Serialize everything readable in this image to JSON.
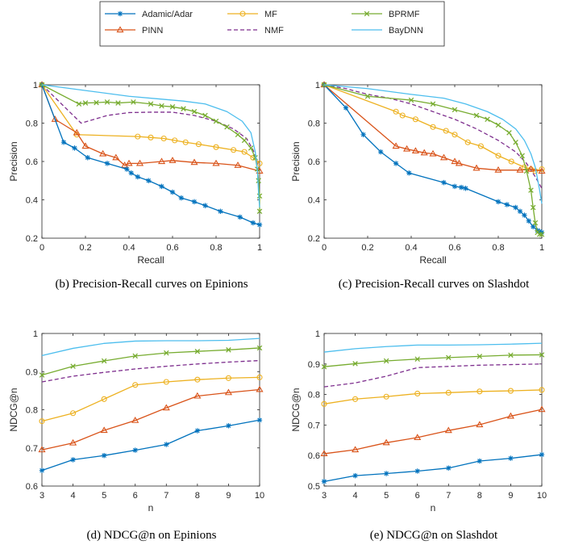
{
  "legend": {
    "entries": [
      {
        "name": "Adamic/Adar",
        "color": "#0072BD",
        "marker": "asterisk",
        "dash": "none"
      },
      {
        "name": "MF",
        "color": "#EDB120",
        "marker": "circle",
        "dash": "none"
      },
      {
        "name": "BPRMF",
        "color": "#77AC30",
        "marker": "cross",
        "dash": "none"
      },
      {
        "name": "PINN",
        "color": "#D95319",
        "marker": "triangle",
        "dash": "none"
      },
      {
        "name": "NMF",
        "color": "#7E2F8E",
        "marker": "none",
        "dash": "dashed"
      },
      {
        "name": "BayDNN",
        "color": "#4DBEEE",
        "marker": "none",
        "dash": "none"
      }
    ]
  },
  "chart_data": [
    {
      "id": "b",
      "type": "line",
      "caption": "(b)  Precision-Recall curves on Epinions",
      "xlabel": "Recall",
      "ylabel": "Precision",
      "xlim": [
        0,
        1
      ],
      "ylim": [
        0.2,
        1
      ],
      "xticks": [
        "0",
        "0.2",
        "0.4",
        "0.6",
        "0.8",
        "1"
      ],
      "yticks": [
        "0.2",
        "0.4",
        "0.6",
        "0.8",
        "1"
      ],
      "series": [
        {
          "name": "Adamic/Adar",
          "x": [
            0,
            0.1,
            0.15,
            0.21,
            0.3,
            0.39,
            0.41,
            0.44,
            0.49,
            0.55,
            0.6,
            0.64,
            0.7,
            0.75,
            0.82,
            0.91,
            0.97,
            1.0
          ],
          "y": [
            1,
            0.7,
            0.67,
            0.62,
            0.59,
            0.56,
            0.54,
            0.52,
            0.5,
            0.47,
            0.44,
            0.41,
            0.39,
            0.37,
            0.34,
            0.31,
            0.28,
            0.27
          ]
        },
        {
          "name": "MF",
          "x": [
            0,
            0.16,
            0.44,
            0.5,
            0.56,
            0.61,
            0.66,
            0.72,
            0.8,
            0.88,
            0.93,
            0.97,
            1.0
          ],
          "y": [
            1,
            0.74,
            0.73,
            0.725,
            0.72,
            0.71,
            0.7,
            0.69,
            0.675,
            0.66,
            0.65,
            0.62,
            0.59
          ]
        },
        {
          "name": "BPRMF",
          "x": [
            0,
            0.17,
            0.2,
            0.25,
            0.3,
            0.35,
            0.42,
            0.5,
            0.55,
            0.6,
            0.65,
            0.7,
            0.75,
            0.8,
            0.85,
            0.9,
            0.93,
            0.96,
            0.98,
            0.99,
            0.995,
            1.0,
            1.0
          ],
          "y": [
            1,
            0.9,
            0.905,
            0.907,
            0.91,
            0.905,
            0.91,
            0.9,
            0.89,
            0.885,
            0.875,
            0.86,
            0.84,
            0.81,
            0.78,
            0.74,
            0.71,
            0.67,
            0.62,
            0.56,
            0.5,
            0.42,
            0.34
          ]
        },
        {
          "name": "PINN",
          "x": [
            0,
            0.06,
            0.16,
            0.2,
            0.28,
            0.34,
            0.38,
            0.4,
            0.45,
            0.55,
            0.6,
            0.7,
            0.8,
            0.9,
            1.0
          ],
          "y": [
            1,
            0.82,
            0.75,
            0.68,
            0.64,
            0.62,
            0.58,
            0.59,
            0.59,
            0.6,
            0.605,
            0.595,
            0.59,
            0.58,
            0.55
          ]
        },
        {
          "name": "NMF",
          "x": [
            0,
            0.18,
            0.3,
            0.4,
            0.5,
            0.6,
            0.7,
            0.8,
            0.88,
            0.94,
            0.97,
            0.99,
            1.0
          ],
          "y": [
            1,
            0.8,
            0.84,
            0.855,
            0.857,
            0.857,
            0.84,
            0.81,
            0.77,
            0.72,
            0.66,
            0.6,
            0.55
          ]
        },
        {
          "name": "BayDNN",
          "x": [
            0,
            0.2,
            0.4,
            0.55,
            0.65,
            0.75,
            0.85,
            0.92,
            0.96,
            0.98,
            0.99,
            0.995,
            1.0
          ],
          "y": [
            1,
            0.97,
            0.94,
            0.925,
            0.915,
            0.9,
            0.86,
            0.81,
            0.75,
            0.65,
            0.55,
            0.44,
            0.36
          ]
        }
      ]
    },
    {
      "id": "c",
      "type": "line",
      "caption": "(c)  Precision-Recall curves on Slashdot",
      "xlabel": "Recall",
      "ylabel": "Precision",
      "xlim": [
        0,
        1
      ],
      "ylim": [
        0.2,
        1
      ],
      "xticks": [
        "0",
        "0.2",
        "0.4",
        "0.6",
        "0.8",
        "1"
      ],
      "yticks": [
        "0.2",
        "0.4",
        "0.6",
        "0.8",
        "1"
      ],
      "series": [
        {
          "name": "Adamic/Adar",
          "x": [
            0,
            0.1,
            0.18,
            0.26,
            0.33,
            0.39,
            0.55,
            0.6,
            0.63,
            0.65,
            0.8,
            0.84,
            0.88,
            0.9,
            0.92,
            0.94,
            0.96,
            0.98,
            0.99,
            1.0
          ],
          "y": [
            1,
            0.88,
            0.74,
            0.65,
            0.59,
            0.54,
            0.49,
            0.47,
            0.465,
            0.46,
            0.39,
            0.375,
            0.36,
            0.34,
            0.32,
            0.29,
            0.26,
            0.24,
            0.235,
            0.23
          ]
        },
        {
          "name": "MF",
          "x": [
            0,
            0.33,
            0.36,
            0.42,
            0.5,
            0.56,
            0.6,
            0.66,
            0.72,
            0.8,
            0.86,
            0.92,
            0.95,
            0.97,
            1.0
          ],
          "y": [
            1,
            0.86,
            0.84,
            0.82,
            0.78,
            0.76,
            0.74,
            0.7,
            0.68,
            0.63,
            0.6,
            0.57,
            0.56,
            0.55,
            0.56
          ]
        },
        {
          "name": "BPRMF",
          "x": [
            0,
            0.2,
            0.4,
            0.5,
            0.6,
            0.7,
            0.75,
            0.8,
            0.85,
            0.88,
            0.91,
            0.93,
            0.95,
            0.96,
            0.97,
            0.98,
            0.99,
            1.0
          ],
          "y": [
            1,
            0.94,
            0.92,
            0.9,
            0.87,
            0.84,
            0.82,
            0.79,
            0.75,
            0.7,
            0.63,
            0.55,
            0.45,
            0.36,
            0.28,
            0.23,
            0.22,
            0.22
          ]
        },
        {
          "name": "PINN",
          "x": [
            0,
            0.33,
            0.38,
            0.42,
            0.46,
            0.5,
            0.55,
            0.6,
            0.62,
            0.7,
            0.8,
            0.9,
            0.95,
            1.0
          ],
          "y": [
            1,
            0.68,
            0.665,
            0.655,
            0.645,
            0.64,
            0.62,
            0.6,
            0.59,
            0.565,
            0.555,
            0.555,
            0.56,
            0.55
          ]
        },
        {
          "name": "NMF",
          "x": [
            0,
            0.1,
            0.2,
            0.3,
            0.4,
            0.5,
            0.6,
            0.7,
            0.8,
            0.88,
            0.93,
            0.97,
            1.0
          ],
          "y": [
            1,
            0.98,
            0.95,
            0.93,
            0.9,
            0.86,
            0.82,
            0.77,
            0.71,
            0.65,
            0.59,
            0.52,
            0.46
          ]
        },
        {
          "name": "BayDNN",
          "x": [
            0,
            0.2,
            0.4,
            0.55,
            0.65,
            0.75,
            0.82,
            0.88,
            0.92,
            0.95,
            0.97,
            0.99,
            1.0
          ],
          "y": [
            1,
            0.98,
            0.95,
            0.93,
            0.9,
            0.86,
            0.82,
            0.77,
            0.71,
            0.64,
            0.57,
            0.45,
            0.38
          ]
        }
      ]
    },
    {
      "id": "d",
      "type": "line",
      "caption": "(d)  NDCG@n on Epinions",
      "xlabel": "n",
      "ylabel": "NDCG@n",
      "xlim": [
        3,
        10
      ],
      "ylim": [
        0.6,
        1
      ],
      "xticks": [
        "3",
        "4",
        "5",
        "6",
        "7",
        "8",
        "9",
        "10"
      ],
      "yticks": [
        "0.6",
        "0.7",
        "0.8",
        "0.9",
        "1"
      ],
      "series": [
        {
          "name": "Adamic/Adar",
          "x": [
            3,
            4,
            5,
            6,
            7,
            8,
            9,
            10
          ],
          "y": [
            0.641,
            0.669,
            0.68,
            0.694,
            0.709,
            0.745,
            0.758,
            0.773
          ]
        },
        {
          "name": "MF",
          "x": [
            3,
            4,
            5,
            6,
            7,
            8,
            9,
            10
          ],
          "y": [
            0.77,
            0.791,
            0.828,
            0.865,
            0.873,
            0.879,
            0.883,
            0.885
          ]
        },
        {
          "name": "BPRMF",
          "x": [
            3,
            4,
            5,
            6,
            7,
            8,
            9,
            10
          ],
          "y": [
            0.891,
            0.914,
            0.928,
            0.941,
            0.949,
            0.953,
            0.957,
            0.962
          ]
        },
        {
          "name": "PINN",
          "x": [
            3,
            4,
            5,
            6,
            7,
            8,
            9,
            10
          ],
          "y": [
            0.695,
            0.713,
            0.746,
            0.772,
            0.805,
            0.836,
            0.845,
            0.853
          ]
        },
        {
          "name": "NMF",
          "x": [
            3,
            4,
            5,
            6,
            7,
            8,
            9,
            10
          ],
          "y": [
            0.873,
            0.888,
            0.898,
            0.907,
            0.914,
            0.92,
            0.925,
            0.929
          ]
        },
        {
          "name": "BayDNN",
          "x": [
            3,
            4,
            5,
            6,
            7,
            8,
            9,
            10
          ],
          "y": [
            0.942,
            0.961,
            0.974,
            0.98,
            0.981,
            0.981,
            0.982,
            0.987
          ]
        }
      ]
    },
    {
      "id": "e",
      "type": "line",
      "caption": "(e)  NDCG@n on Slashdot",
      "xlabel": "n",
      "ylabel": "NDCG@n",
      "xlim": [
        3,
        10
      ],
      "ylim": [
        0.5,
        1
      ],
      "xticks": [
        "3",
        "4",
        "5",
        "6",
        "7",
        "8",
        "9",
        "10"
      ],
      "yticks": [
        "0.5",
        "0.6",
        "0.7",
        "0.8",
        "0.9",
        "1"
      ],
      "series": [
        {
          "name": "Adamic/Adar",
          "x": [
            3,
            4,
            5,
            6,
            7,
            8,
            9,
            10
          ],
          "y": [
            0.515,
            0.534,
            0.541,
            0.549,
            0.559,
            0.582,
            0.591,
            0.603
          ]
        },
        {
          "name": "MF",
          "x": [
            3,
            4,
            5,
            6,
            7,
            8,
            9,
            10
          ],
          "y": [
            0.769,
            0.785,
            0.793,
            0.803,
            0.806,
            0.81,
            0.812,
            0.815
          ]
        },
        {
          "name": "BPRMF",
          "x": [
            3,
            4,
            5,
            6,
            7,
            8,
            9,
            10
          ],
          "y": [
            0.891,
            0.901,
            0.91,
            0.916,
            0.921,
            0.925,
            0.929,
            0.93
          ]
        },
        {
          "name": "PINN",
          "x": [
            3,
            4,
            5,
            6,
            7,
            8,
            9,
            10
          ],
          "y": [
            0.606,
            0.619,
            0.642,
            0.659,
            0.682,
            0.701,
            0.729,
            0.751
          ]
        },
        {
          "name": "NMF",
          "x": [
            3,
            4,
            5,
            6,
            7,
            8,
            9,
            10
          ],
          "y": [
            0.825,
            0.838,
            0.86,
            0.888,
            0.892,
            0.896,
            0.898,
            0.9
          ]
        },
        {
          "name": "BayDNN",
          "x": [
            3,
            4,
            5,
            6,
            7,
            8,
            9,
            10
          ],
          "y": [
            0.939,
            0.95,
            0.957,
            0.962,
            0.962,
            0.963,
            0.965,
            0.968
          ]
        }
      ]
    }
  ]
}
